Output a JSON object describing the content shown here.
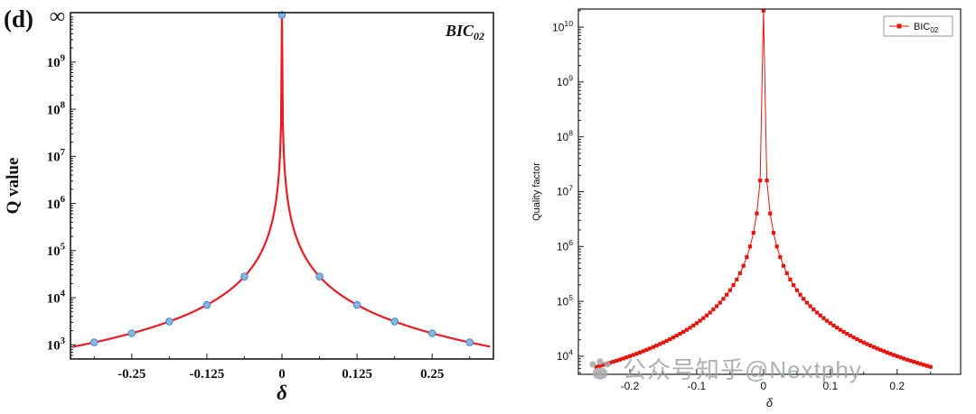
{
  "figure": {
    "background": "#ffffff"
  },
  "watermark": {
    "icon": "paw-icon",
    "text": "公众号知乎@Nextphy"
  },
  "chart_data": [
    {
      "id": "bic02-q-value",
      "type": "line+scatter",
      "panel_label": "(d)",
      "annotation": {
        "base": "BIC",
        "sub": "02"
      },
      "xlabel": "δ",
      "ylabel": "Q value",
      "xlim": [
        -0.352,
        0.352
      ],
      "x_ticks": [
        -0.25,
        -0.125,
        0,
        0.125,
        0.25
      ],
      "x_tick_labels": [
        "-0.25",
        "-0.125",
        "0",
        "0.125",
        "0.25"
      ],
      "ylim_log10": [
        2.7,
        10.05
      ],
      "y_tick_exponents": [
        3,
        4,
        5,
        6,
        7,
        8,
        9
      ],
      "y_top_label": "∞",
      "y_top_exponent": 10,
      "grid": false,
      "legend_position": "none",
      "line_color": "#ec1c24",
      "marker_color": "#85b7e2",
      "marker_edge_color": "#4a86c0",
      "curve_model": {
        "formula": "Q = C / delta^2",
        "C": 110
      },
      "scatter_points": {
        "x": [
          -0.3125,
          -0.25,
          -0.1875,
          -0.125,
          -0.0625,
          0,
          0.0625,
          0.125,
          0.1875,
          0.25,
          0.3125
        ],
        "Q": [
          1130,
          1760,
          3130,
          7040,
          28200,
          "infinity",
          28200,
          7040,
          3130,
          1760,
          1130
        ]
      }
    },
    {
      "id": "bic02-quality-factor",
      "type": "line+scatter",
      "panel_label": "",
      "legend": {
        "base": "BIC",
        "sub": "02",
        "position": "top-right"
      },
      "xlabel": "δ",
      "ylabel": "Quality factor",
      "xlim": [
        -0.277,
        0.295
      ],
      "x_ticks": [
        -0.2,
        -0.1,
        0,
        0.1,
        0.2
      ],
      "x_tick_labels": [
        "-0.2",
        "-0.1",
        "0",
        "0.1",
        "0.2"
      ],
      "ylim_log10": [
        3.67,
        10.33
      ],
      "y_tick_exponents": [
        4,
        5,
        6,
        7,
        8,
        9,
        10
      ],
      "grid": false,
      "line_color": "#e8140c",
      "marker_color": "#e8140c",
      "curve_model": {
        "formula": "Q = C / delta^2",
        "C": 400,
        "peak_value": 20000000000
      },
      "series_spec": {
        "x_min": -0.25,
        "x_max": 0.25,
        "x_step": 0.005,
        "C": 400,
        "peak_value": 20000000000
      }
    }
  ]
}
